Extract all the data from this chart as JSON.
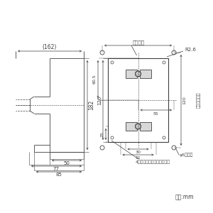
{
  "bg_color": "#ffffff",
  "line_color": "#404040",
  "text_color": "#404040",
  "unit_text": "単位:mm",
  "label_mount_hole": "取付け穴",
  "label_r26": "R2.6",
  "label_mount_pitch": "取付けピッチ",
  "label_phi5": "φ5取付穴",
  "label_knockout": "4－裏面配線用ノックアウト",
  "dim_162": "(162)",
  "dim_182": "182",
  "dim_126": "126",
  "dim_605": "60.5",
  "dim_25": "25",
  "dim_50": "50",
  "dim_77": "77",
  "dim_85": "85",
  "dim_55": "55",
  "dim_120": "120",
  "dim_30": "30",
  "dim_51": "51"
}
